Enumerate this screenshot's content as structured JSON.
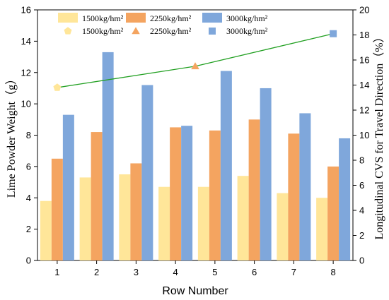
{
  "chart_data": {
    "type": "bar",
    "categories": [
      "1",
      "2",
      "3",
      "4",
      "5",
      "6",
      "7",
      "8"
    ],
    "xlabel": "Row Number",
    "ylabel": "Lime Powder Weight（g）",
    "y2label": "Longitudinal CVS for Travel Direction（%）",
    "ylim": [
      0,
      16
    ],
    "y2lim": [
      0,
      20
    ],
    "yticks": [
      "0",
      "2",
      "4",
      "6",
      "8",
      "10",
      "12",
      "14",
      "16"
    ],
    "y2ticks": [
      "0",
      "2",
      "4",
      "6",
      "8",
      "10",
      "12",
      "14",
      "16",
      "18",
      "20"
    ],
    "series": [
      {
        "name": "1500kg/hm²",
        "color": "#FFE699",
        "values": [
          3.8,
          5.3,
          5.5,
          4.7,
          4.7,
          5.4,
          4.3,
          4.0
        ]
      },
      {
        "name": "2250kg/hm²",
        "color": "#F4A460",
        "values": [
          6.5,
          8.2,
          6.2,
          8.5,
          8.3,
          9.0,
          8.1,
          6.0
        ]
      },
      {
        "name": "3000kg/hm²",
        "color": "#7FA7DB",
        "values": [
          9.3,
          13.3,
          11.2,
          8.6,
          12.1,
          11.0,
          9.4,
          7.8
        ]
      }
    ],
    "cvs_series": [
      {
        "name": "1500kg/hm²",
        "marker": "pentagon",
        "color": "#FFE699",
        "x": 1,
        "y": 13.8
      },
      {
        "name": "2250kg/hm²",
        "marker": "triangle",
        "color": "#F4A460",
        "x": 4.5,
        "y": 15.5
      },
      {
        "name": "3000kg/hm²",
        "marker": "square",
        "color": "#7FA7DB",
        "x": 8,
        "y": 18.1
      }
    ],
    "line_color": "#22A022",
    "legend_position": "top",
    "grid": false
  }
}
